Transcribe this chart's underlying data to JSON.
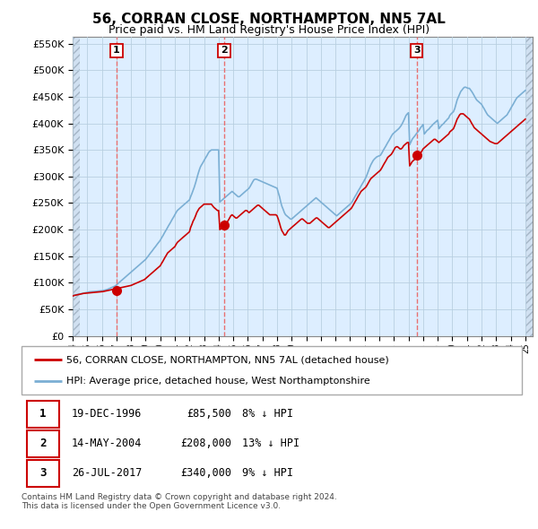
{
  "title": "56, CORRAN CLOSE, NORTHAMPTON, NN5 7AL",
  "subtitle": "Price paid vs. HM Land Registry's House Price Index (HPI)",
  "ylim": [
    0,
    562500
  ],
  "yticks": [
    0,
    50000,
    100000,
    150000,
    200000,
    250000,
    300000,
    350000,
    400000,
    450000,
    500000,
    550000
  ],
  "transactions": [
    {
      "label": "1",
      "date": "19-DEC-1996",
      "price": 85500,
      "pct": "8%",
      "x_year": 1997.0
    },
    {
      "label": "2",
      "date": "14-MAY-2004",
      "price": 208000,
      "pct": "13%",
      "x_year": 2004.37
    },
    {
      "label": "3",
      "date": "26-JUL-2017",
      "price": 340000,
      "pct": "9%",
      "x_year": 2017.56
    }
  ],
  "hpi_color": "#7bafd4",
  "sale_color": "#cc0000",
  "marker_color": "#cc0000",
  "vline_color": "#e87070",
  "grid_color": "#b8cfe0",
  "bg_color": "#ddeeff",
  "table_border_color": "#cc0000",
  "footer_text": "Contains HM Land Registry data © Crown copyright and database right 2024.\nThis data is licensed under the Open Government Licence v3.0.",
  "legend_label_sale": "56, CORRAN CLOSE, NORTHAMPTON, NN5 7AL (detached house)",
  "legend_label_hpi": "HPI: Average price, detached house, West Northamptonshire",
  "xmin": 1994.0,
  "xmax": 2025.5,
  "hpi_x": [
    1994.0,
    1994.08,
    1994.17,
    1994.25,
    1994.33,
    1994.42,
    1994.5,
    1994.58,
    1994.67,
    1994.75,
    1994.83,
    1994.92,
    1995.0,
    1995.08,
    1995.17,
    1995.25,
    1995.33,
    1995.42,
    1995.5,
    1995.58,
    1995.67,
    1995.75,
    1995.83,
    1995.92,
    1996.0,
    1996.08,
    1996.17,
    1996.25,
    1996.33,
    1996.42,
    1996.5,
    1996.58,
    1996.67,
    1996.75,
    1996.83,
    1996.92,
    1997.0,
    1997.08,
    1997.17,
    1997.25,
    1997.33,
    1997.42,
    1997.5,
    1997.58,
    1997.67,
    1997.75,
    1997.83,
    1997.92,
    1998.0,
    1998.08,
    1998.17,
    1998.25,
    1998.33,
    1998.42,
    1998.5,
    1998.58,
    1998.67,
    1998.75,
    1998.83,
    1998.92,
    1999.0,
    1999.08,
    1999.17,
    1999.25,
    1999.33,
    1999.42,
    1999.5,
    1999.58,
    1999.67,
    1999.75,
    1999.83,
    1999.92,
    2000.0,
    2000.08,
    2000.17,
    2000.25,
    2000.33,
    2000.42,
    2000.5,
    2000.58,
    2000.67,
    2000.75,
    2000.83,
    2000.92,
    2001.0,
    2001.08,
    2001.17,
    2001.25,
    2001.33,
    2001.42,
    2001.5,
    2001.58,
    2001.67,
    2001.75,
    2001.83,
    2001.92,
    2002.0,
    2002.08,
    2002.17,
    2002.25,
    2002.33,
    2002.42,
    2002.5,
    2002.58,
    2002.67,
    2002.75,
    2002.83,
    2002.92,
    2003.0,
    2003.08,
    2003.17,
    2003.25,
    2003.33,
    2003.42,
    2003.5,
    2003.58,
    2003.67,
    2003.75,
    2003.83,
    2003.92,
    2004.0,
    2004.08,
    2004.17,
    2004.25,
    2004.33,
    2004.42,
    2004.5,
    2004.58,
    2004.67,
    2004.75,
    2004.83,
    2004.92,
    2005.0,
    2005.08,
    2005.17,
    2005.25,
    2005.33,
    2005.42,
    2005.5,
    2005.58,
    2005.67,
    2005.75,
    2005.83,
    2005.92,
    2006.0,
    2006.08,
    2006.17,
    2006.25,
    2006.33,
    2006.42,
    2006.5,
    2006.58,
    2006.67,
    2006.75,
    2006.83,
    2006.92,
    2007.0,
    2007.08,
    2007.17,
    2007.25,
    2007.33,
    2007.42,
    2007.5,
    2007.58,
    2007.67,
    2007.75,
    2007.83,
    2007.92,
    2008.0,
    2008.08,
    2008.17,
    2008.25,
    2008.33,
    2008.42,
    2008.5,
    2008.58,
    2008.67,
    2008.75,
    2008.83,
    2008.92,
    2009.0,
    2009.08,
    2009.17,
    2009.25,
    2009.33,
    2009.42,
    2009.5,
    2009.58,
    2009.67,
    2009.75,
    2009.83,
    2009.92,
    2010.0,
    2010.08,
    2010.17,
    2010.25,
    2010.33,
    2010.42,
    2010.5,
    2010.58,
    2010.67,
    2010.75,
    2010.83,
    2010.92,
    2011.0,
    2011.08,
    2011.17,
    2011.25,
    2011.33,
    2011.42,
    2011.5,
    2011.58,
    2011.67,
    2011.75,
    2011.83,
    2011.92,
    2012.0,
    2012.08,
    2012.17,
    2012.25,
    2012.33,
    2012.42,
    2012.5,
    2012.58,
    2012.67,
    2012.75,
    2012.83,
    2012.92,
    2013.0,
    2013.08,
    2013.17,
    2013.25,
    2013.33,
    2013.42,
    2013.5,
    2013.58,
    2013.67,
    2013.75,
    2013.83,
    2013.92,
    2014.0,
    2014.08,
    2014.17,
    2014.25,
    2014.33,
    2014.42,
    2014.5,
    2014.58,
    2014.67,
    2014.75,
    2014.83,
    2014.92,
    2015.0,
    2015.08,
    2015.17,
    2015.25,
    2015.33,
    2015.42,
    2015.5,
    2015.58,
    2015.67,
    2015.75,
    2015.83,
    2015.92,
    2016.0,
    2016.08,
    2016.17,
    2016.25,
    2016.33,
    2016.42,
    2016.5,
    2016.58,
    2016.67,
    2016.75,
    2016.83,
    2016.92,
    2017.0,
    2017.08,
    2017.17,
    2017.25,
    2017.33,
    2017.42,
    2017.5,
    2017.58,
    2017.67,
    2017.75,
    2017.83,
    2017.92,
    2018.0,
    2018.08,
    2018.17,
    2018.25,
    2018.33,
    2018.42,
    2018.5,
    2018.58,
    2018.67,
    2018.75,
    2018.83,
    2018.92,
    2019.0,
    2019.08,
    2019.17,
    2019.25,
    2019.33,
    2019.42,
    2019.5,
    2019.58,
    2019.67,
    2019.75,
    2019.83,
    2019.92,
    2020.0,
    2020.08,
    2020.17,
    2020.25,
    2020.33,
    2020.42,
    2020.5,
    2020.58,
    2020.67,
    2020.75,
    2020.83,
    2020.92,
    2021.0,
    2021.08,
    2021.17,
    2021.25,
    2021.33,
    2021.42,
    2021.5,
    2021.58,
    2021.67,
    2021.75,
    2021.83,
    2021.92,
    2022.0,
    2022.08,
    2022.17,
    2022.25,
    2022.33,
    2022.42,
    2022.5,
    2022.58,
    2022.67,
    2022.75,
    2022.83,
    2022.92,
    2023.0,
    2023.08,
    2023.17,
    2023.25,
    2023.33,
    2023.42,
    2023.5,
    2023.58,
    2023.67,
    2023.75,
    2023.83,
    2023.92,
    2024.0,
    2024.08,
    2024.17,
    2024.25,
    2024.33,
    2024.42,
    2024.5,
    2024.58,
    2024.67,
    2024.75,
    2024.83,
    2024.92,
    2025.0
  ],
  "hpi_y": [
    75000,
    76000,
    77000,
    77500,
    78000,
    78500,
    79000,
    79500,
    80000,
    80500,
    81000,
    81500,
    82000,
    82500,
    83000,
    83200,
    83400,
    83600,
    83800,
    84000,
    84200,
    84400,
    84600,
    84800,
    85000,
    85500,
    86000,
    86500,
    87000,
    88000,
    89000,
    90000,
    91000,
    92000,
    93000,
    94000,
    96000,
    98000,
    100000,
    102000,
    104000,
    106000,
    108000,
    110000,
    112000,
    114000,
    116000,
    118000,
    120000,
    122000,
    124000,
    126000,
    128000,
    130000,
    132000,
    134000,
    136000,
    138000,
    140000,
    142000,
    144000,
    147000,
    150000,
    153000,
    156000,
    159000,
    162000,
    165000,
    168000,
    171000,
    174000,
    177000,
    180000,
    184000,
    188000,
    192000,
    196000,
    200000,
    204000,
    208000,
    212000,
    216000,
    220000,
    224000,
    228000,
    232000,
    236000,
    238000,
    240000,
    242000,
    244000,
    246000,
    248000,
    250000,
    252000,
    254000,
    256000,
    262000,
    268000,
    274000,
    280000,
    288000,
    296000,
    304000,
    312000,
    318000,
    322000,
    326000,
    330000,
    334000,
    338000,
    342000,
    346000,
    348000,
    350000,
    350000,
    350000,
    350000,
    350000,
    350000,
    350000,
    252000,
    254000,
    256000,
    258000,
    260000,
    262000,
    264000,
    266000,
    268000,
    270000,
    272000,
    270000,
    268000,
    266000,
    264000,
    262000,
    262000,
    264000,
    266000,
    268000,
    270000,
    272000,
    274000,
    276000,
    278000,
    282000,
    286000,
    290000,
    294000,
    295000,
    295000,
    294000,
    293000,
    292000,
    291000,
    290000,
    289000,
    288000,
    287000,
    286000,
    285000,
    284000,
    283000,
    282000,
    281000,
    280000,
    279000,
    278000,
    270000,
    262000,
    252000,
    244000,
    238000,
    232000,
    228000,
    226000,
    224000,
    222000,
    220000,
    220000,
    222000,
    224000,
    226000,
    228000,
    230000,
    232000,
    234000,
    236000,
    238000,
    240000,
    242000,
    244000,
    246000,
    248000,
    250000,
    252000,
    254000,
    256000,
    258000,
    260000,
    258000,
    256000,
    254000,
    252000,
    250000,
    248000,
    246000,
    244000,
    242000,
    240000,
    238000,
    236000,
    234000,
    232000,
    230000,
    228000,
    226000,
    228000,
    230000,
    232000,
    234000,
    236000,
    238000,
    240000,
    242000,
    244000,
    246000,
    248000,
    250000,
    254000,
    258000,
    262000,
    266000,
    270000,
    274000,
    278000,
    282000,
    286000,
    290000,
    294000,
    298000,
    304000,
    310000,
    316000,
    322000,
    326000,
    330000,
    333000,
    335000,
    337000,
    338000,
    339000,
    340000,
    344000,
    348000,
    352000,
    356000,
    360000,
    364000,
    368000,
    372000,
    376000,
    380000,
    382000,
    384000,
    386000,
    388000,
    390000,
    393000,
    396000,
    400000,
    405000,
    410000,
    415000,
    418000,
    420000,
    360000,
    365000,
    370000,
    373000,
    376000,
    379000,
    382000,
    385000,
    388000,
    392000,
    395000,
    398000,
    380000,
    383000,
    386000,
    388000,
    390000,
    393000,
    395000,
    398000,
    400000,
    402000,
    404000,
    406000,
    390000,
    393000,
    396000,
    398000,
    400000,
    403000,
    405000,
    408000,
    410000,
    415000,
    418000,
    420000,
    422000,
    428000,
    436000,
    444000,
    450000,
    455000,
    460000,
    463000,
    466000,
    468000,
    468000,
    467000,
    466000,
    466000,
    463000,
    460000,
    456000,
    452000,
    448000,
    444000,
    442000,
    440000,
    438000,
    436000,
    432000,
    428000,
    424000,
    420000,
    416000,
    414000,
    412000,
    410000,
    408000,
    406000,
    404000,
    402000,
    400000,
    402000,
    404000,
    406000,
    408000,
    410000,
    412000,
    414000,
    416000,
    420000,
    424000,
    428000,
    432000,
    436000,
    440000,
    444000,
    448000,
    450000,
    452000,
    454000,
    456000,
    458000,
    460000,
    462000,
    464000,
    466000,
    468000,
    470000,
    472000,
    474000,
    476000,
    478000,
    480000,
    482000,
    482000,
    482000,
    485000
  ],
  "sale_y": [
    75000,
    76000,
    76500,
    77000,
    77500,
    78000,
    78500,
    79000,
    79500,
    80000,
    80200,
    80400,
    80600,
    80800,
    81000,
    81200,
    81400,
    81600,
    81800,
    82000,
    82200,
    82400,
    82600,
    82800,
    83000,
    83500,
    84000,
    84500,
    85000,
    85500,
    86000,
    86500,
    87000,
    87500,
    88000,
    88500,
    89000,
    89500,
    90000,
    90500,
    91000,
    91500,
    92000,
    92500,
    93000,
    93500,
    94000,
    94500,
    95000,
    96000,
    97000,
    98000,
    99000,
    100000,
    101000,
    102000,
    103000,
    104000,
    105000,
    106000,
    108000,
    110000,
    112000,
    114000,
    116000,
    118000,
    120000,
    122000,
    124000,
    126000,
    128000,
    130000,
    132000,
    136000,
    140000,
    144000,
    148000,
    152000,
    156000,
    158000,
    160000,
    162000,
    164000,
    166000,
    168000,
    172000,
    176000,
    178000,
    180000,
    182000,
    184000,
    186000,
    188000,
    190000,
    192000,
    194000,
    196000,
    204000,
    210000,
    216000,
    220000,
    226000,
    232000,
    236000,
    240000,
    242000,
    244000,
    246000,
    248000,
    248000,
    248000,
    248000,
    248000,
    248000,
    248000,
    245000,
    242000,
    240000,
    238000,
    236000,
    236000,
    200000,
    202000,
    204000,
    206000,
    208000,
    210000,
    214000,
    218000,
    222000,
    226000,
    228000,
    226000,
    224000,
    222000,
    222000,
    224000,
    226000,
    228000,
    230000,
    232000,
    234000,
    236000,
    236000,
    234000,
    232000,
    234000,
    236000,
    238000,
    240000,
    242000,
    244000,
    246000,
    246000,
    244000,
    242000,
    240000,
    238000,
    236000,
    234000,
    232000,
    230000,
    228000,
    228000,
    228000,
    228000,
    228000,
    228000,
    226000,
    220000,
    212000,
    204000,
    198000,
    194000,
    190000,
    190000,
    194000,
    198000,
    200000,
    202000,
    204000,
    206000,
    208000,
    210000,
    212000,
    214000,
    216000,
    218000,
    220000,
    220000,
    218000,
    216000,
    214000,
    212000,
    212000,
    212000,
    214000,
    216000,
    218000,
    220000,
    222000,
    222000,
    220000,
    218000,
    216000,
    214000,
    212000,
    210000,
    208000,
    206000,
    204000,
    204000,
    206000,
    208000,
    210000,
    212000,
    214000,
    216000,
    218000,
    220000,
    222000,
    224000,
    226000,
    228000,
    230000,
    232000,
    234000,
    236000,
    238000,
    240000,
    244000,
    248000,
    252000,
    256000,
    260000,
    264000,
    268000,
    272000,
    274000,
    276000,
    278000,
    280000,
    284000,
    288000,
    292000,
    296000,
    298000,
    300000,
    302000,
    304000,
    306000,
    308000,
    310000,
    312000,
    316000,
    320000,
    324000,
    328000,
    332000,
    336000,
    338000,
    340000,
    342000,
    346000,
    350000,
    354000,
    356000,
    356000,
    354000,
    352000,
    352000,
    354000,
    358000,
    360000,
    362000,
    364000,
    364000,
    320000,
    324000,
    328000,
    330000,
    332000,
    334000,
    336000,
    338000,
    340000,
    344000,
    348000,
    352000,
    354000,
    356000,
    358000,
    360000,
    362000,
    364000,
    366000,
    368000,
    370000,
    370000,
    368000,
    366000,
    364000,
    366000,
    368000,
    370000,
    372000,
    374000,
    376000,
    378000,
    380000,
    384000,
    386000,
    388000,
    390000,
    396000,
    402000,
    408000,
    412000,
    416000,
    418000,
    418000,
    418000,
    416000,
    414000,
    412000,
    410000,
    408000,
    404000,
    400000,
    396000,
    392000,
    390000,
    388000,
    386000,
    384000,
    382000,
    380000,
    378000,
    376000,
    374000,
    372000,
    370000,
    368000,
    366000,
    365000,
    364000,
    363000,
    362000,
    362000,
    362000,
    364000,
    366000,
    368000,
    370000,
    372000,
    374000,
    376000,
    378000,
    380000,
    382000,
    384000,
    386000,
    388000,
    390000,
    392000,
    394000,
    396000,
    398000,
    400000,
    402000,
    404000,
    406000,
    408000,
    410000,
    412000,
    414000,
    416000,
    418000,
    420000,
    422000,
    424000,
    424000,
    422000,
    420000,
    418000,
    416000
  ]
}
